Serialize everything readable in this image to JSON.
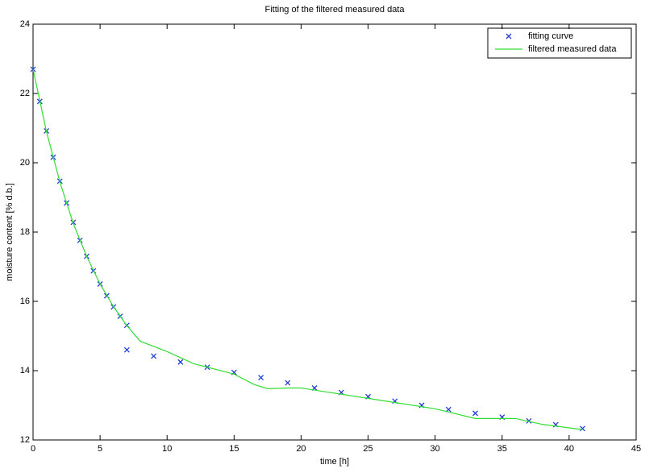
{
  "chart_data": {
    "type": "scatter-line",
    "title": "Fitting of the filtered measured data",
    "xlabel": "time [h]",
    "ylabel": "moisture content [% d.b.]",
    "xlim": [
      0,
      45
    ],
    "xticks": [
      0,
      5,
      10,
      15,
      20,
      25,
      30,
      35,
      40,
      45
    ],
    "ylim": [
      12,
      24
    ],
    "yticks": [
      12,
      14,
      16,
      18,
      20,
      22,
      24
    ],
    "legend": "upper right",
    "series": [
      {
        "name": "fitting curve",
        "color": "#1f3fd6",
        "marker": "x",
        "x": [
          0,
          0.5,
          1,
          1.5,
          2,
          2.5,
          3,
          3.5,
          4,
          4.5,
          5,
          5.5,
          6,
          6.5,
          7,
          7,
          9,
          11,
          13,
          15,
          17,
          19,
          21,
          23,
          25,
          27,
          29,
          31,
          33,
          35,
          37,
          39,
          41
        ],
        "values": [
          22.7,
          21.77,
          20.92,
          20.16,
          19.47,
          18.84,
          18.28,
          17.76,
          17.3,
          16.88,
          16.5,
          16.16,
          15.84,
          15.57,
          15.31,
          14.6,
          14.42,
          14.25,
          14.1,
          13.95,
          13.8,
          13.65,
          13.5,
          13.37,
          13.25,
          13.12,
          13.0,
          12.88,
          12.77,
          12.66,
          12.55,
          12.44,
          12.33
        ]
      },
      {
        "name": "filtered measured data",
        "color": "#33dd33",
        "marker": "line",
        "x": [
          0,
          1,
          2,
          3,
          4,
          5,
          6,
          7,
          8,
          10,
          12,
          15,
          16.5,
          17.5,
          19,
          20,
          25,
          30,
          33,
          36,
          38,
          41
        ],
        "values": [
          22.7,
          20.9,
          19.45,
          18.25,
          17.3,
          16.5,
          15.85,
          15.3,
          14.85,
          14.55,
          14.2,
          13.9,
          13.6,
          13.48,
          13.5,
          13.5,
          13.2,
          12.9,
          12.62,
          12.62,
          12.45,
          12.3
        ]
      }
    ]
  }
}
